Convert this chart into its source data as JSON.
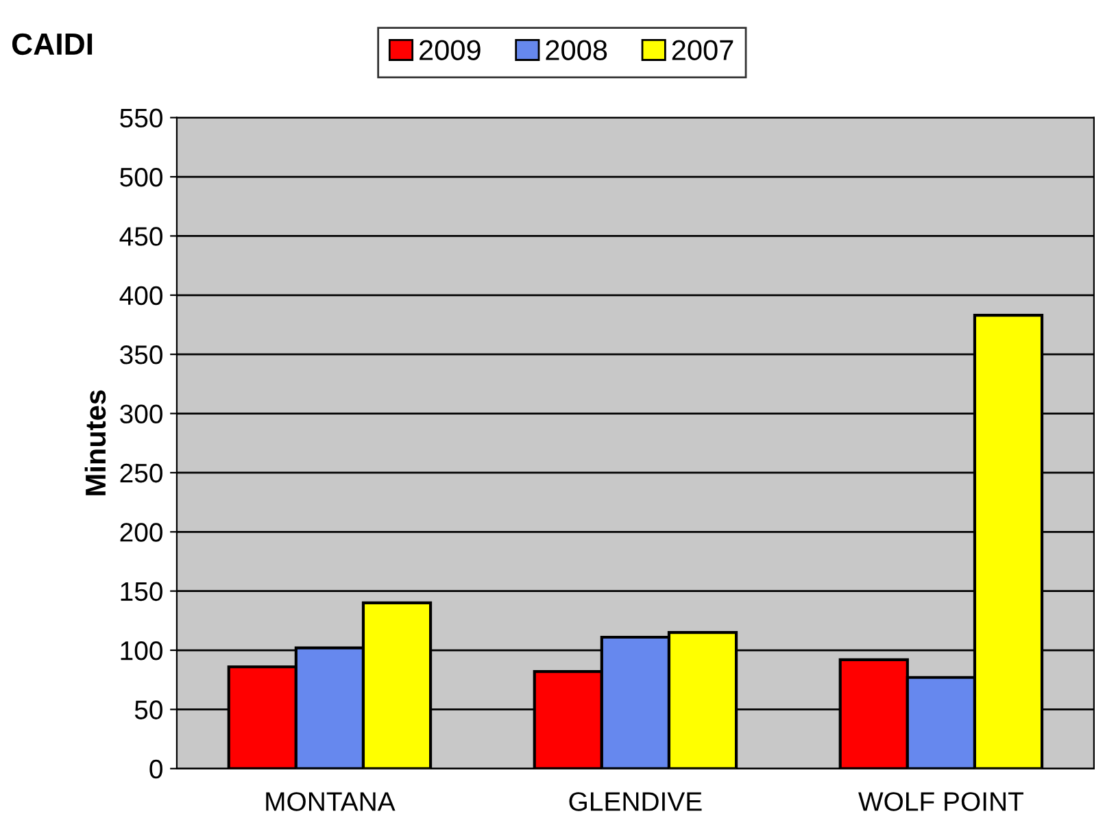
{
  "chart_data": {
    "type": "bar",
    "title": "CAIDI",
    "ylabel": "Minutes",
    "categories": [
      "MONTANA",
      "GLENDIVE",
      "WOLF POINT"
    ],
    "series": [
      {
        "name": "2009",
        "color": "#ff0000",
        "values": [
          86,
          82,
          92
        ]
      },
      {
        "name": "2008",
        "color": "#6688ee",
        "values": [
          102,
          111,
          77
        ]
      },
      {
        "name": "2007",
        "color": "#ffff00",
        "values": [
          140,
          115,
          383
        ]
      }
    ],
    "ylim": [
      0,
      550
    ],
    "yticks": [
      0,
      50,
      100,
      150,
      200,
      250,
      300,
      350,
      400,
      450,
      500,
      550
    ],
    "grid": "y",
    "legend": "top"
  }
}
